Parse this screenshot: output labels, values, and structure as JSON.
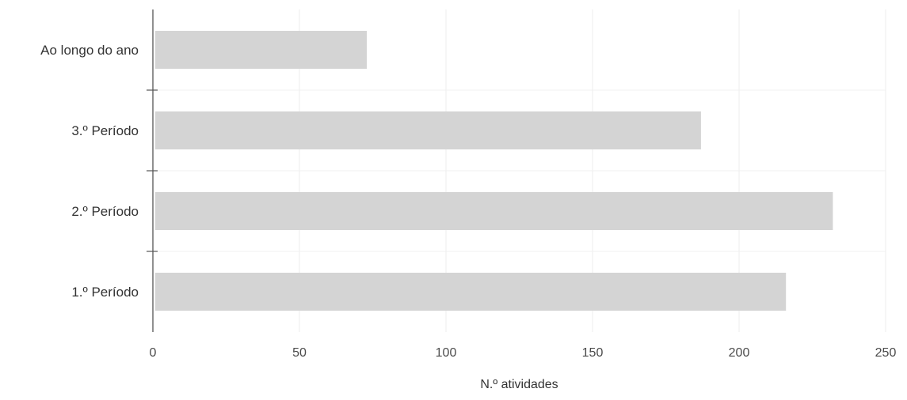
{
  "chart_data": {
    "type": "bar",
    "orientation": "horizontal",
    "categories": [
      "Ao longo do ano",
      "3.º Período",
      "2.º Período",
      "1.º Período"
    ],
    "values": [
      73,
      187,
      232,
      216
    ],
    "title": "",
    "xlabel": "N.º atividades",
    "ylabel": "",
    "xlim": [
      0,
      250
    ],
    "xticks": [
      0,
      50,
      100,
      150,
      200,
      250
    ],
    "grid": true,
    "bar_color": "#d4d4d4",
    "grid_color": "#ececec"
  }
}
